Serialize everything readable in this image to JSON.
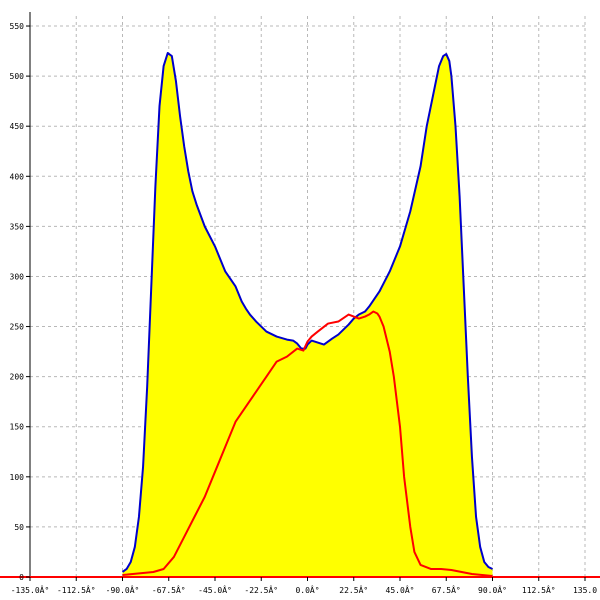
{
  "chart_data": {
    "type": "area",
    "xlim": [
      -135,
      135
    ],
    "ylim": [
      0,
      560
    ],
    "grid": true,
    "x_ticks": [
      -135,
      -112.5,
      -90,
      -67.5,
      -45,
      -22.5,
      0,
      22.5,
      45,
      67.5,
      90,
      112.5,
      135
    ],
    "x_tick_labels": [
      "-135.0Â°",
      "-112.5Â°",
      "-90.0Â°",
      "-67.5Â°",
      "-45.0Â°",
      "-22.5Â°",
      "0.0Â°",
      "22.5Â°",
      "45.0Â°",
      "67.5Â°",
      "90.0Â°",
      "112.5Â°",
      "135.0"
    ],
    "y_ticks": [
      0,
      50,
      100,
      150,
      200,
      250,
      300,
      350,
      400,
      450,
      500,
      550
    ],
    "y_tick_labels": [
      "0",
      "50",
      "100",
      "150",
      "200",
      "250",
      "300",
      "350",
      "400",
      "450",
      "500",
      "550"
    ],
    "series": [
      {
        "color": "#0000cc",
        "fill": "#ffff00",
        "x": [
          -90,
          -88,
          -86,
          -84,
          -82,
          -80,
          -78,
          -76,
          -74,
          -72,
          -70,
          -68,
          -66,
          -64,
          -62,
          -60,
          -58,
          -56,
          -54,
          -50,
          -45,
          -40,
          -35,
          -32,
          -30,
          -28,
          -25,
          -22.5,
          -20,
          -15,
          -10,
          -7,
          -5,
          -3,
          -1,
          0,
          2,
          5,
          8,
          10,
          12,
          15,
          18,
          20,
          22.5,
          25,
          28,
          30,
          35,
          40,
          45,
          50,
          55,
          58,
          60,
          62,
          64,
          66,
          67.5,
          69,
          70,
          72,
          74,
          76,
          78,
          80,
          82,
          84,
          86,
          88,
          90
        ],
        "y": [
          5,
          8,
          15,
          30,
          60,
          110,
          190,
          290,
          390,
          470,
          510,
          523,
          520,
          495,
          460,
          430,
          405,
          385,
          372,
          350,
          330,
          305,
          290,
          275,
          268,
          262,
          255,
          250,
          245,
          240,
          237,
          236,
          233,
          228,
          228,
          232,
          236,
          234,
          232,
          235,
          238,
          242,
          248,
          252,
          258,
          262,
          265,
          270,
          285,
          305,
          330,
          365,
          410,
          450,
          470,
          490,
          510,
          520,
          522,
          515,
          500,
          450,
          380,
          290,
          200,
          120,
          60,
          30,
          15,
          10,
          8
        ]
      },
      {
        "color": "#ff0000",
        "x": [
          -90,
          -85,
          -80,
          -75,
          -70,
          -65,
          -60,
          -55,
          -50,
          -45,
          -40,
          -35,
          -30,
          -25,
          -20,
          -15,
          -12,
          -10,
          -5,
          -2,
          0,
          2,
          5,
          10,
          15,
          20,
          22.5,
          25,
          28,
          30,
          32,
          34,
          35,
          37,
          40,
          42,
          45,
          47,
          50,
          52,
          55,
          60,
          65,
          70,
          75,
          80,
          85,
          90
        ],
        "y": [
          2,
          3,
          4,
          5,
          8,
          20,
          40,
          60,
          80,
          105,
          130,
          155,
          170,
          185,
          200,
          215,
          218,
          220,
          228,
          226,
          235,
          240,
          245,
          253,
          255,
          262,
          260,
          258,
          260,
          262,
          265,
          263,
          260,
          250,
          225,
          200,
          150,
          100,
          50,
          25,
          12,
          8,
          8,
          7,
          5,
          3,
          2,
          1
        ]
      }
    ]
  }
}
